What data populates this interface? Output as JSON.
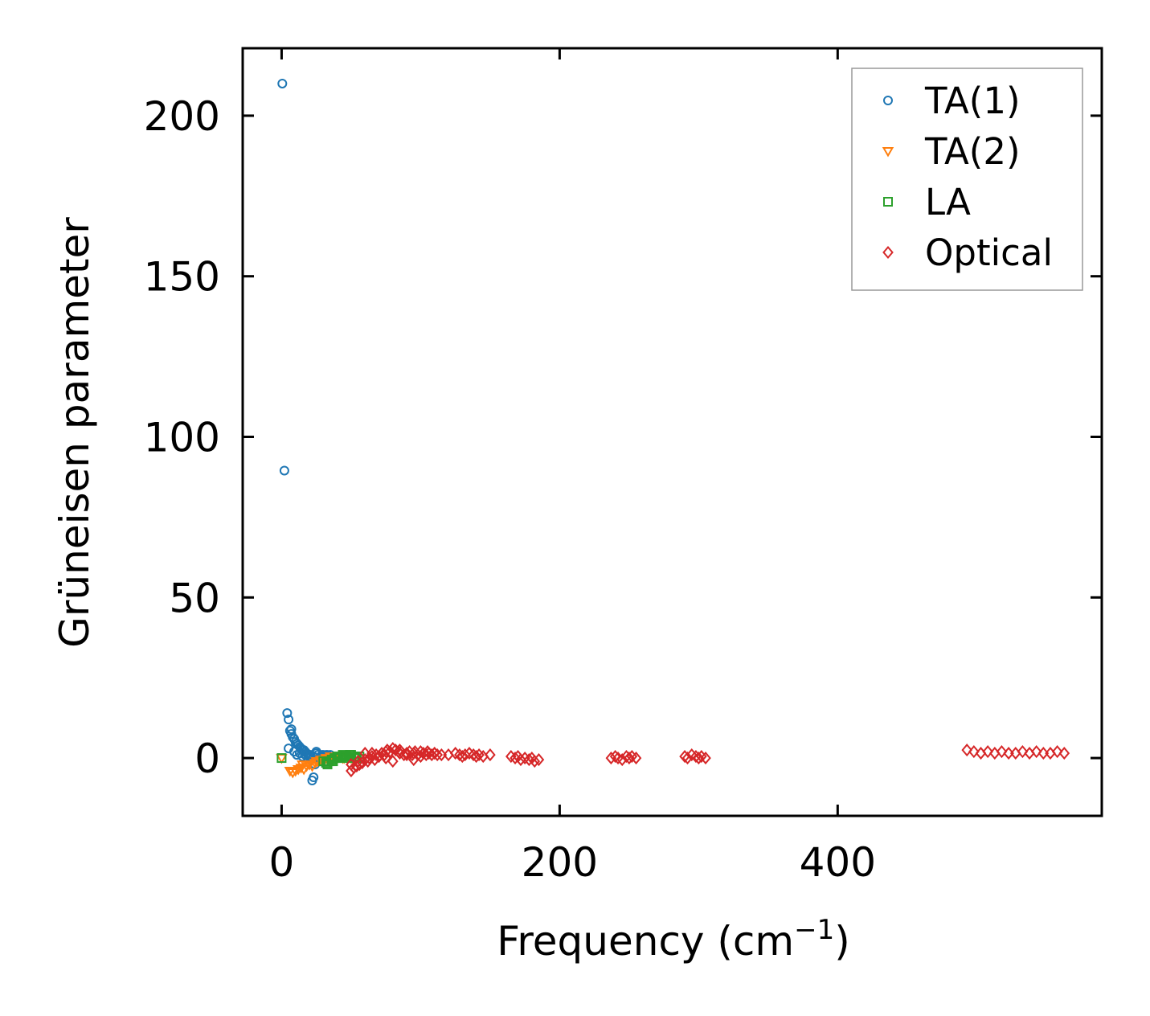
{
  "chart_data": {
    "type": "scatter",
    "xlabel": "Frequency (cm",
    "xlabel_superscript": "−1",
    "xlabel_suffix": ")",
    "ylabel": "Grüneisen parameter",
    "xlim": [
      -28,
      590
    ],
    "ylim": [
      -18,
      221
    ],
    "xticks": [
      0,
      200,
      400
    ],
    "yticks": [
      0,
      50,
      100,
      150,
      200
    ],
    "xtick_labels": [
      "0",
      "200",
      "400"
    ],
    "ytick_labels": [
      "0",
      "50",
      "100",
      "150",
      "200"
    ],
    "ticks_direction": "in",
    "ticks_on_all_sides": true,
    "grid": false,
    "legend_position": "top-right",
    "series": [
      {
        "name": "TA(1)",
        "marker": "circle",
        "color": "#1f77b4",
        "x": [
          0.5,
          2,
          4,
          5,
          6,
          7,
          8,
          9,
          10,
          11,
          12,
          13,
          14,
          15,
          16,
          17,
          18,
          19,
          20,
          21,
          22,
          23,
          24,
          25,
          26,
          27,
          28,
          29,
          30,
          31,
          32,
          33,
          34,
          35,
          9,
          11,
          13,
          15,
          17,
          19,
          21,
          23,
          25,
          27,
          29,
          31,
          33,
          35,
          5,
          7
        ],
        "y": [
          210,
          89.5,
          14,
          12,
          8.5,
          9,
          6.5,
          6,
          5,
          4.5,
          4,
          3.5,
          3,
          2.5,
          2.5,
          2,
          1.5,
          1,
          0.5,
          -0.5,
          -7,
          -6,
          -2,
          2,
          1,
          0,
          -1,
          0.5,
          1,
          0,
          1,
          0.5,
          0,
          1,
          2,
          1,
          1.5,
          0.5,
          1,
          0,
          1,
          0.5,
          1.5,
          0,
          1,
          0.5,
          1,
          0,
          3,
          7.5
        ]
      },
      {
        "name": "TA(2)",
        "marker": "triangle-down",
        "color": "#ff7f0e",
        "x": [
          0,
          6,
          8,
          10,
          12,
          14,
          16,
          18,
          20,
          22,
          24,
          26,
          28,
          30,
          32,
          34,
          36,
          38,
          40,
          42,
          44,
          46,
          48,
          50,
          15,
          25,
          35,
          45
        ],
        "y": [
          0,
          -4,
          -4.5,
          -4,
          -3.5,
          -3,
          -3.5,
          -2.5,
          -2,
          -2.5,
          -1.5,
          -1,
          -0.5,
          -1,
          0,
          -0.5,
          0,
          0.5,
          0,
          0.5,
          0,
          1,
          0.5,
          0,
          -2,
          -1,
          0.5,
          0
        ]
      },
      {
        "name": "LA",
        "marker": "square",
        "color": "#2ca02c",
        "x": [
          0,
          30,
          32,
          34,
          36,
          38,
          40,
          42,
          44,
          46,
          48,
          50,
          52,
          54,
          56,
          33,
          37,
          41,
          45,
          49,
          53
        ],
        "y": [
          0,
          -1,
          -1.5,
          -1,
          -0.5,
          0,
          0.5,
          0,
          1,
          0.5,
          0,
          1,
          0.5,
          0,
          0.5,
          -2,
          -1,
          0,
          0.5,
          1,
          0
        ]
      },
      {
        "name": "Optical",
        "marker": "diamond",
        "color": "#d62728",
        "x": [
          50,
          52,
          54,
          55,
          56,
          58,
          60,
          62,
          63,
          65,
          67,
          68,
          70,
          72,
          74,
          75,
          76,
          78,
          80,
          82,
          84,
          85,
          86,
          88,
          90,
          92,
          94,
          95,
          96,
          98,
          100,
          102,
          104,
          105,
          106,
          108,
          110,
          112,
          115,
          125,
          128,
          130,
          132,
          135,
          138,
          140,
          142,
          145,
          150,
          165,
          168,
          170,
          172,
          175,
          178,
          180,
          182,
          185,
          237,
          240,
          242,
          245,
          248,
          250,
          252,
          255,
          290,
          292,
          295,
          298,
          300,
          302,
          305,
          493,
          498,
          503,
          508,
          513,
          518,
          523,
          528,
          533,
          538,
          543,
          548,
          553,
          558,
          563,
          60,
          70,
          80,
          90,
          100,
          50,
          65,
          75,
          85,
          95,
          110,
          120
        ],
        "y": [
          -4,
          -3,
          -2.5,
          -1,
          -2,
          -1.5,
          -0.5,
          -1,
          0,
          0.5,
          -0.5,
          1,
          0.5,
          1.5,
          1,
          2,
          2.5,
          2,
          3,
          2.5,
          2,
          1.5,
          2,
          1,
          1.5,
          2,
          1,
          1.5,
          2,
          1,
          0.5,
          1.5,
          1,
          2,
          1.5,
          1,
          1.5,
          1,
          1,
          1.5,
          1,
          0.5,
          1,
          1.5,
          1,
          0.5,
          1,
          0.5,
          1,
          0.5,
          0,
          0.5,
          -0.5,
          0,
          -0.5,
          0,
          -1,
          -0.5,
          0,
          0.5,
          0,
          -0.5,
          0.5,
          0,
          0.5,
          0,
          0.5,
          0,
          1,
          0.5,
          0,
          0.5,
          0,
          2.5,
          2,
          1.5,
          2,
          1.5,
          2,
          1.5,
          1.5,
          2,
          1.5,
          2,
          1.5,
          1.5,
          2,
          1.5,
          1.5,
          0.5,
          -1,
          1,
          2,
          -2,
          1.5,
          0,
          2.5,
          -0.5,
          1.5,
          1
        ]
      }
    ]
  }
}
